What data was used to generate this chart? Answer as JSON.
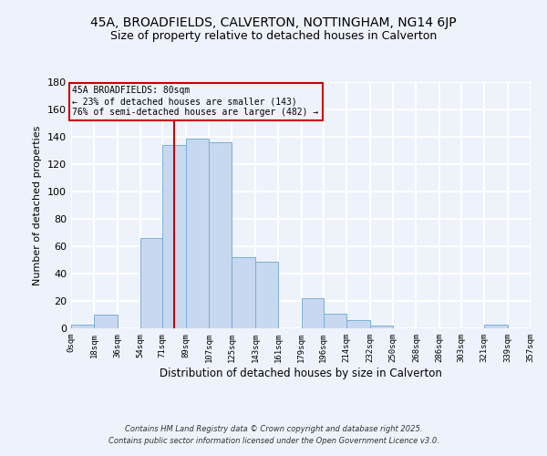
{
  "title": "45A, BROADFIELDS, CALVERTON, NOTTINGHAM, NG14 6JP",
  "subtitle": "Size of property relative to detached houses in Calverton",
  "xlabel": "Distribution of detached houses by size in Calverton",
  "ylabel": "Number of detached properties",
  "bar_color": "#c8d8f0",
  "bar_edge_color": "#7ab0d8",
  "background_color": "#eef2fb",
  "grid_color": "#ffffff",
  "bin_edges": [
    0,
    18,
    36,
    54,
    71,
    89,
    107,
    125,
    143,
    161,
    179,
    196,
    214,
    232,
    250,
    268,
    286,
    303,
    321,
    339,
    357
  ],
  "bin_labels": [
    "0sqm",
    "18sqm",
    "36sqm",
    "54sqm",
    "71sqm",
    "89sqm",
    "107sqm",
    "125sqm",
    "143sqm",
    "161sqm",
    "179sqm",
    "196sqm",
    "214sqm",
    "232sqm",
    "250sqm",
    "268sqm",
    "286sqm",
    "303sqm",
    "321sqm",
    "339sqm",
    "357sqm"
  ],
  "counts": [
    3,
    10,
    0,
    66,
    134,
    139,
    136,
    52,
    49,
    0,
    22,
    11,
    6,
    2,
    0,
    0,
    0,
    0,
    3,
    0
  ],
  "property_line_x": 80,
  "property_line_color": "#cc0000",
  "annotation_line1": "45A BROADFIELDS: 80sqm",
  "annotation_line2": "← 23% of detached houses are smaller (143)",
  "annotation_line3": "76% of semi-detached houses are larger (482) →",
  "annotation_box_color": "#cc0000",
  "ylim": [
    0,
    180
  ],
  "yticks": [
    0,
    20,
    40,
    60,
    80,
    100,
    120,
    140,
    160,
    180
  ],
  "footer_line1": "Contains HM Land Registry data © Crown copyright and database right 2025.",
  "footer_line2": "Contains public sector information licensed under the Open Government Licence v3.0."
}
